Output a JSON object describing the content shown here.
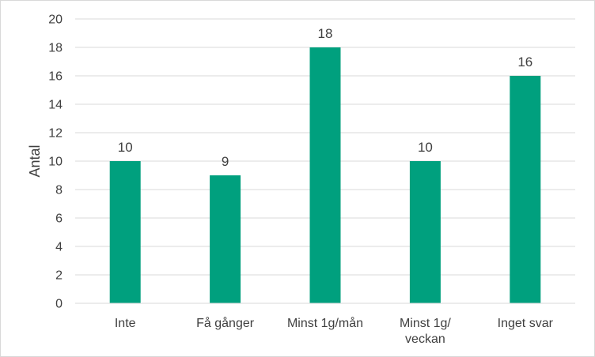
{
  "chart_data": {
    "type": "bar",
    "categories": [
      "Inte",
      "Få gånger",
      "Minst 1g/mån",
      "Minst 1g/ veckan",
      "Inget svar"
    ],
    "category_lines": [
      [
        "Inte"
      ],
      [
        "Få gånger"
      ],
      [
        "Minst 1g/mån"
      ],
      [
        "Minst 1g/",
        "veckan"
      ],
      [
        "Inget svar"
      ]
    ],
    "values": [
      10,
      9,
      18,
      10,
      16
    ],
    "ylabel": "Antal",
    "xlabel": "",
    "ylim": [
      0,
      20
    ],
    "yticks": [
      0,
      2,
      4,
      6,
      8,
      10,
      12,
      14,
      16,
      18,
      20
    ],
    "grid": true,
    "bar_color": "#00a07e",
    "grid_color": "#d9d9d9",
    "data_labels": true
  }
}
